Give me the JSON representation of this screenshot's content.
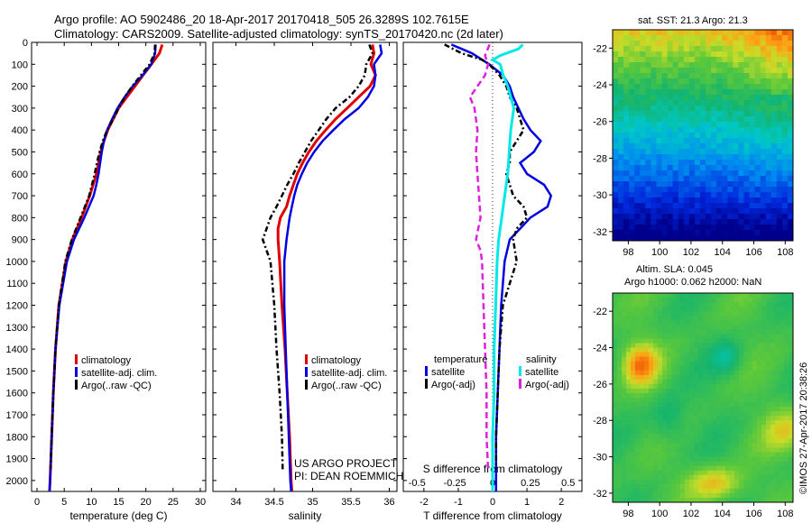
{
  "header": {
    "line1": "Argo profile: AO 5902486_20 18-Apr-2017 20170418_505 26.3289S 102.7615E",
    "line2": "Climatology: CARS2009. Satellite-adjusted climatology: synTS_20170420.nc (2d later)"
  },
  "credit": "US ARGO PROJECT",
  "pi": "PI: DEAN ROEMMICH",
  "watermark": "©IMOS 27-Apr-2017 20:38:26",
  "colors": {
    "climatology": "#e00000",
    "satellite": "#0000e0",
    "argo": "#000000",
    "sal_satellite": "#00e8e8",
    "sal_argo": "#e020e0"
  },
  "chart_data": [
    {
      "type": "line",
      "xlabel": "temperature (deg C)",
      "xlim": [
        -1,
        31
      ],
      "xticks": [
        0,
        5,
        10,
        15,
        20,
        25,
        30
      ],
      "ylim": [
        2050,
        0
      ],
      "yticks": [
        0,
        100,
        200,
        300,
        400,
        500,
        600,
        700,
        800,
        900,
        1000,
        1100,
        1200,
        1300,
        1400,
        1500,
        1600,
        1700,
        1800,
        1900,
        2000
      ],
      "legend": [
        "climatology",
        "satellite-adj. clim.",
        "Argo(..raw -QC)"
      ],
      "series": [
        {
          "name": "climatology",
          "y": [
            10,
            50,
            100,
            150,
            200,
            250,
            300,
            350,
            400,
            450,
            500,
            550,
            600,
            650,
            700,
            800,
            900,
            1000,
            1200,
            1400,
            1600,
            1800,
            2000,
            2050
          ],
          "x": [
            23.0,
            22.5,
            21.0,
            19.5,
            18.0,
            16.5,
            15.0,
            14.0,
            13.0,
            12.3,
            11.7,
            11.3,
            10.9,
            10.3,
            9.7,
            8.2,
            6.5,
            5.3,
            4.0,
            3.4,
            3.0,
            2.7,
            2.4,
            2.3
          ]
        },
        {
          "name": "satellite-adj. clim.",
          "y": [
            10,
            50,
            100,
            150,
            200,
            250,
            300,
            350,
            400,
            450,
            500,
            550,
            600,
            650,
            700,
            800,
            900,
            1000,
            1200,
            1400,
            1600,
            1800,
            2000,
            2050
          ],
          "x": [
            21.8,
            21.7,
            21.0,
            19.4,
            17.6,
            16.1,
            14.8,
            13.8,
            12.9,
            12.3,
            11.9,
            11.6,
            11.3,
            10.9,
            10.4,
            8.7,
            6.8,
            5.5,
            4.1,
            3.4,
            3.0,
            2.7,
            2.4,
            2.3
          ]
        },
        {
          "name": "Argo(..raw -QC)",
          "y": [
            10,
            50,
            100,
            150,
            200,
            250,
            300,
            350,
            400,
            450,
            500,
            550,
            600,
            650,
            700,
            800,
            900,
            1000,
            1200,
            1400,
            1600,
            1800,
            1950
          ],
          "x": [
            21.7,
            21.6,
            20.7,
            19.1,
            17.5,
            16.1,
            15.0,
            14.0,
            12.9,
            12.1,
            11.5,
            11.0,
            10.6,
            10.1,
            9.6,
            8.0,
            6.4,
            5.2,
            4.0,
            3.4,
            3.0,
            2.7,
            2.5
          ]
        }
      ]
    },
    {
      "type": "line",
      "xlabel": "salinity",
      "xlim": [
        33.7,
        36.1
      ],
      "xticks": [
        34,
        34.5,
        35,
        35.5,
        36
      ],
      "ylim": [
        2050,
        0
      ],
      "legend": [
        "climatology",
        "satellite-adj. clim.",
        "Argo(..raw -QC)"
      ],
      "series": [
        {
          "name": "climatology",
          "y": [
            10,
            50,
            100,
            150,
            200,
            250,
            300,
            350,
            400,
            450,
            500,
            550,
            600,
            650,
            700,
            750,
            800,
            850,
            900,
            1000,
            1200,
            1400,
            1600,
            1800,
            2000,
            2050
          ],
          "x": [
            35.78,
            35.8,
            35.76,
            35.82,
            35.75,
            35.6,
            35.45,
            35.3,
            35.17,
            35.05,
            34.95,
            34.87,
            34.8,
            34.75,
            34.7,
            34.66,
            34.58,
            34.55,
            34.55,
            34.57,
            34.6,
            34.64,
            34.67,
            34.7,
            34.72,
            34.73
          ]
        },
        {
          "name": "satellite-adj. clim.",
          "y": [
            10,
            50,
            100,
            150,
            200,
            250,
            300,
            350,
            400,
            450,
            500,
            550,
            600,
            650,
            700,
            750,
            800,
            850,
            900,
            1000,
            1200,
            1400,
            1600,
            1800,
            2000,
            2050
          ],
          "x": [
            35.88,
            35.9,
            35.8,
            35.82,
            35.8,
            35.72,
            35.6,
            35.42,
            35.27,
            35.13,
            35.02,
            34.93,
            34.86,
            34.8,
            34.76,
            34.73,
            34.7,
            34.68,
            34.66,
            34.63,
            34.63,
            34.65,
            34.67,
            34.69,
            34.71,
            34.72
          ]
        },
        {
          "name": "Argo(..raw -QC)",
          "y": [
            10,
            50,
            100,
            150,
            200,
            250,
            300,
            350,
            400,
            450,
            500,
            550,
            600,
            650,
            700,
            750,
            800,
            850,
            900,
            950,
            1000,
            1200,
            1400,
            1600,
            1800,
            1950
          ],
          "x": [
            35.74,
            35.78,
            35.7,
            35.68,
            35.6,
            35.48,
            35.3,
            35.18,
            35.08,
            34.98,
            34.9,
            34.82,
            34.75,
            34.67,
            34.6,
            34.53,
            34.45,
            34.4,
            34.35,
            34.4,
            34.45,
            34.5,
            34.53,
            34.57,
            34.6,
            34.61
          ]
        }
      ]
    },
    {
      "type": "line",
      "xlabel": "T difference from climatology",
      "toplabel": "S difference from climatology",
      "xlim": [
        -2.6,
        2.6
      ],
      "xticks": [
        -2,
        -1,
        0,
        1,
        2
      ],
      "topticks": [
        -0.5,
        -0.25,
        0,
        0.25,
        0.5
      ],
      "topticklabels": [
        "-0.5",
        "-0.25",
        "0",
        "0.25",
        "0.5"
      ],
      "ylim": [
        2050,
        0
      ],
      "legend_headers": [
        "temperature",
        "salinity"
      ],
      "legend_t": [
        "satellite",
        "Argo(-adj)"
      ],
      "legend_s": [
        "satellite",
        "Argo(-adj)"
      ],
      "series": [
        {
          "name": "satellite",
          "y": [
            10,
            50,
            80,
            100,
            150,
            200,
            250,
            300,
            350,
            400,
            450,
            500,
            550,
            600,
            650,
            700,
            750,
            800,
            850,
            900,
            1000,
            1200,
            1400,
            1600,
            1800,
            2000,
            2050
          ],
          "x": [
            -1.2,
            -0.6,
            -0.3,
            -0.1,
            0.3,
            0.5,
            0.6,
            0.75,
            0.9,
            1.1,
            1.4,
            1.2,
            0.8,
            1.0,
            1.5,
            1.7,
            1.6,
            1.1,
            0.8,
            0.5,
            0.35,
            0.25,
            0.2,
            0.15,
            0.1,
            0.1,
            0.1
          ]
        },
        {
          "name": "Argo(-adj)",
          "y": [
            10,
            50,
            80,
            100,
            150,
            200,
            250,
            300,
            350,
            400,
            450,
            500,
            550,
            600,
            650,
            700,
            750,
            800,
            850,
            900,
            1000,
            1100,
            1200,
            1400,
            1600,
            1800,
            1950
          ],
          "x": [
            -1.4,
            -0.9,
            -0.3,
            -0.1,
            0.2,
            0.4,
            0.5,
            0.7,
            0.8,
            0.9,
            0.7,
            0.5,
            0.5,
            0.4,
            0.5,
            0.6,
            0.9,
            1.0,
            0.7,
            0.6,
            0.7,
            0.5,
            0.3,
            0.2,
            0.15,
            0.1,
            0.1
          ]
        },
        {
          "name": "satellite",
          "y": [
            10,
            30,
            60,
            80,
            100,
            150,
            200,
            250,
            300,
            400,
            500,
            600,
            700,
            800,
            900,
            1000,
            1200,
            1400,
            1600,
            1800,
            2000,
            2050
          ],
          "x": [
            0.2,
            0.17,
            0.05,
            0.0,
            0.05,
            0.07,
            0.1,
            0.12,
            0.14,
            0.12,
            0.11,
            0.1,
            0.08,
            0.06,
            0.04,
            0.03,
            0.02,
            0.01,
            0.01,
            0.0,
            0.0,
            0.0
          ]
        },
        {
          "name": "Argo(-adj)",
          "y": [
            10,
            60,
            100,
            150,
            200,
            250,
            300,
            400,
            500,
            600,
            700,
            800,
            900,
            950,
            1000,
            1200,
            1400,
            1600,
            1800,
            1950
          ],
          "x": [
            -0.02,
            -0.05,
            -0.03,
            -0.05,
            -0.1,
            -0.15,
            -0.12,
            -0.1,
            -0.11,
            -0.1,
            -0.09,
            -0.08,
            -0.11,
            -0.08,
            -0.07,
            -0.06,
            -0.05,
            -0.04,
            -0.04,
            -0.03
          ]
        }
      ]
    },
    {
      "type": "heatmap",
      "title": "sat. SST: 21.3 Argo: 21.3",
      "xlim": [
        97,
        108.5
      ],
      "xticks": [
        98,
        100,
        102,
        104,
        106,
        108
      ],
      "ylim": [
        -32.5,
        -21
      ],
      "yticks": [
        -22,
        -24,
        -26,
        -28,
        -30,
        -32
      ]
    },
    {
      "type": "heatmap",
      "title_line1": "Altim. SLA: 0.045",
      "title_line2": "Argo h1000: 0.062 h2000: NaN",
      "xlim": [
        97,
        108.5
      ],
      "xticks": [
        98,
        100,
        102,
        104,
        106,
        108
      ],
      "ylim": [
        -32.5,
        -21
      ],
      "yticks": [
        -22,
        -24,
        -26,
        -28,
        -30,
        -32
      ]
    }
  ]
}
